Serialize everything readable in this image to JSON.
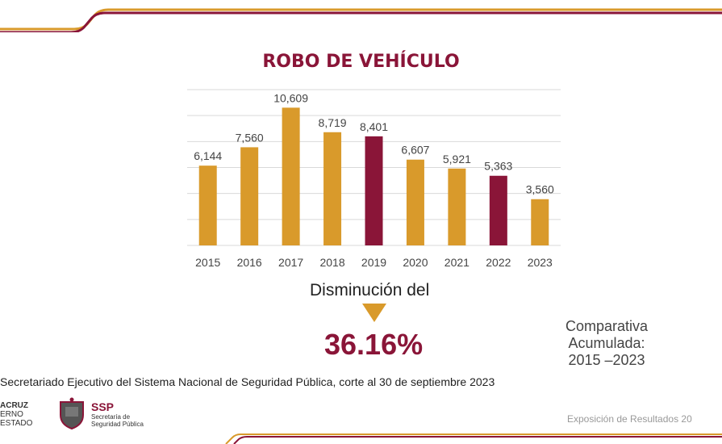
{
  "chart_data": {
    "type": "bar",
    "title": "ROBO DE VEHÍCULO",
    "categories": [
      "2015",
      "2016",
      "2017",
      "2018",
      "2019",
      "2020",
      "2021",
      "2022",
      "2023"
    ],
    "values": [
      6144,
      7560,
      10609,
      8719,
      8401,
      6607,
      5921,
      5363,
      3560
    ],
    "value_labels": [
      "6,144",
      "7,560",
      "10,609",
      "8,719",
      "8,401",
      "6,607",
      "5,921",
      "5,363",
      "3,560"
    ],
    "highlighted": [
      "2019",
      "2022"
    ],
    "ylim": [
      0,
      12000
    ],
    "grid": true,
    "colors": {
      "default": "#d99a2b",
      "highlight": "#8a1538",
      "grid": "#d9d9d9"
    }
  },
  "summary": {
    "decrease_label": "Disminución del",
    "decrease_value": "36.16%",
    "arrow_icon": "down-triangle-icon",
    "comparison": [
      "Comparativa",
      "Acumulada:",
      "2015 –2023"
    ]
  },
  "source_text": "Secretariado Ejecutivo del Sistema Nacional de Seguridad Pública, corte al 30 de septiembre 2023",
  "logos": {
    "gov": [
      "ACRUZ",
      "ERNO",
      "ESTADO"
    ],
    "ssp": "SSP",
    "ssp_sub": [
      "Secretaría de",
      "Seguridad Pública"
    ]
  },
  "footer": "Exposición de Resultados 20",
  "colors": {
    "accent": "#8a1538",
    "gold": "#d99a2b"
  }
}
